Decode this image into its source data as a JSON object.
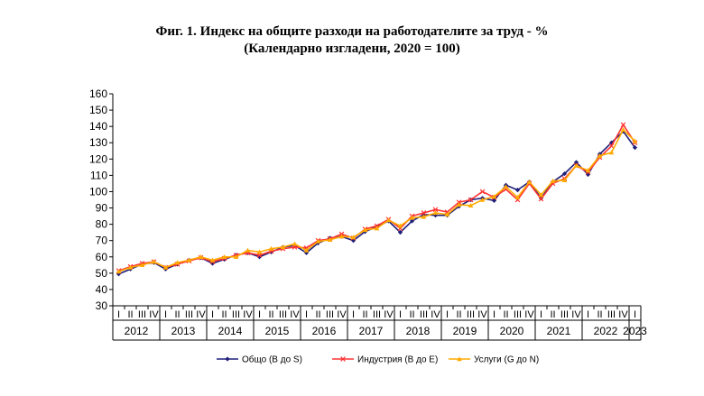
{
  "chart_data": {
    "type": "line",
    "title": "Фиг. 1. Индекс на общите разходи на работодателите за труд - %",
    "subtitle": "(Календарно изгладени, 2020 = 100)",
    "ylim": [
      30,
      160
    ],
    "yticks": [
      30,
      40,
      50,
      60,
      70,
      80,
      90,
      100,
      110,
      120,
      130,
      140,
      150,
      160
    ],
    "years": [
      "2012",
      "2013",
      "2014",
      "2015",
      "2016",
      "2017",
      "2018",
      "2019",
      "2020",
      "2021",
      "2022",
      "2023"
    ],
    "quarter_labels": [
      "I",
      "II",
      "III",
      "IV"
    ],
    "grid": false,
    "legend_position": "bottom",
    "series": [
      {
        "name": "Общо (B до S)",
        "color": "#1f1f7a",
        "marker": "diamond",
        "values": [
          49.5,
          52.5,
          55.5,
          56.5,
          52.5,
          55.5,
          58,
          59.5,
          56,
          58.5,
          61,
          62.5,
          60,
          63,
          66,
          67,
          62.5,
          68.5,
          71.5,
          72.5,
          70,
          75.5,
          78.5,
          82,
          75,
          82,
          86,
          85.5,
          85.5,
          91,
          95,
          96,
          94.5,
          104,
          101,
          106,
          96,
          106,
          111,
          118,
          110.5,
          123,
          130,
          137,
          127
        ]
      },
      {
        "name": "Индустрия (B до E)",
        "color": "#ff3333",
        "marker": "x",
        "values": [
          51.5,
          54,
          56,
          57,
          53.5,
          55.5,
          57.5,
          59.5,
          57,
          59,
          61,
          62.5,
          61,
          63.5,
          65,
          66,
          65.5,
          70,
          71,
          74,
          71.5,
          77,
          79,
          83,
          77.5,
          85,
          87,
          89,
          87.5,
          93.5,
          95,
          100,
          96.5,
          101.5,
          95,
          105,
          95.5,
          105,
          108,
          116,
          112,
          121,
          128,
          141,
          130
        ]
      },
      {
        "name": "Услуги (G до N)",
        "color": "#ffaa00",
        "marker": "triangle",
        "values": [
          51,
          53.5,
          55,
          57,
          53.5,
          56.5,
          58,
          60,
          58,
          60,
          60,
          64,
          63,
          65,
          66,
          68,
          64,
          69.5,
          70.5,
          72.5,
          72,
          76.5,
          77.5,
          82.5,
          79,
          84,
          84.5,
          87,
          86,
          92,
          91.5,
          95,
          97,
          103,
          96.5,
          106,
          98,
          106.5,
          107,
          116,
          113,
          122,
          124,
          138,
          131
        ]
      }
    ]
  }
}
